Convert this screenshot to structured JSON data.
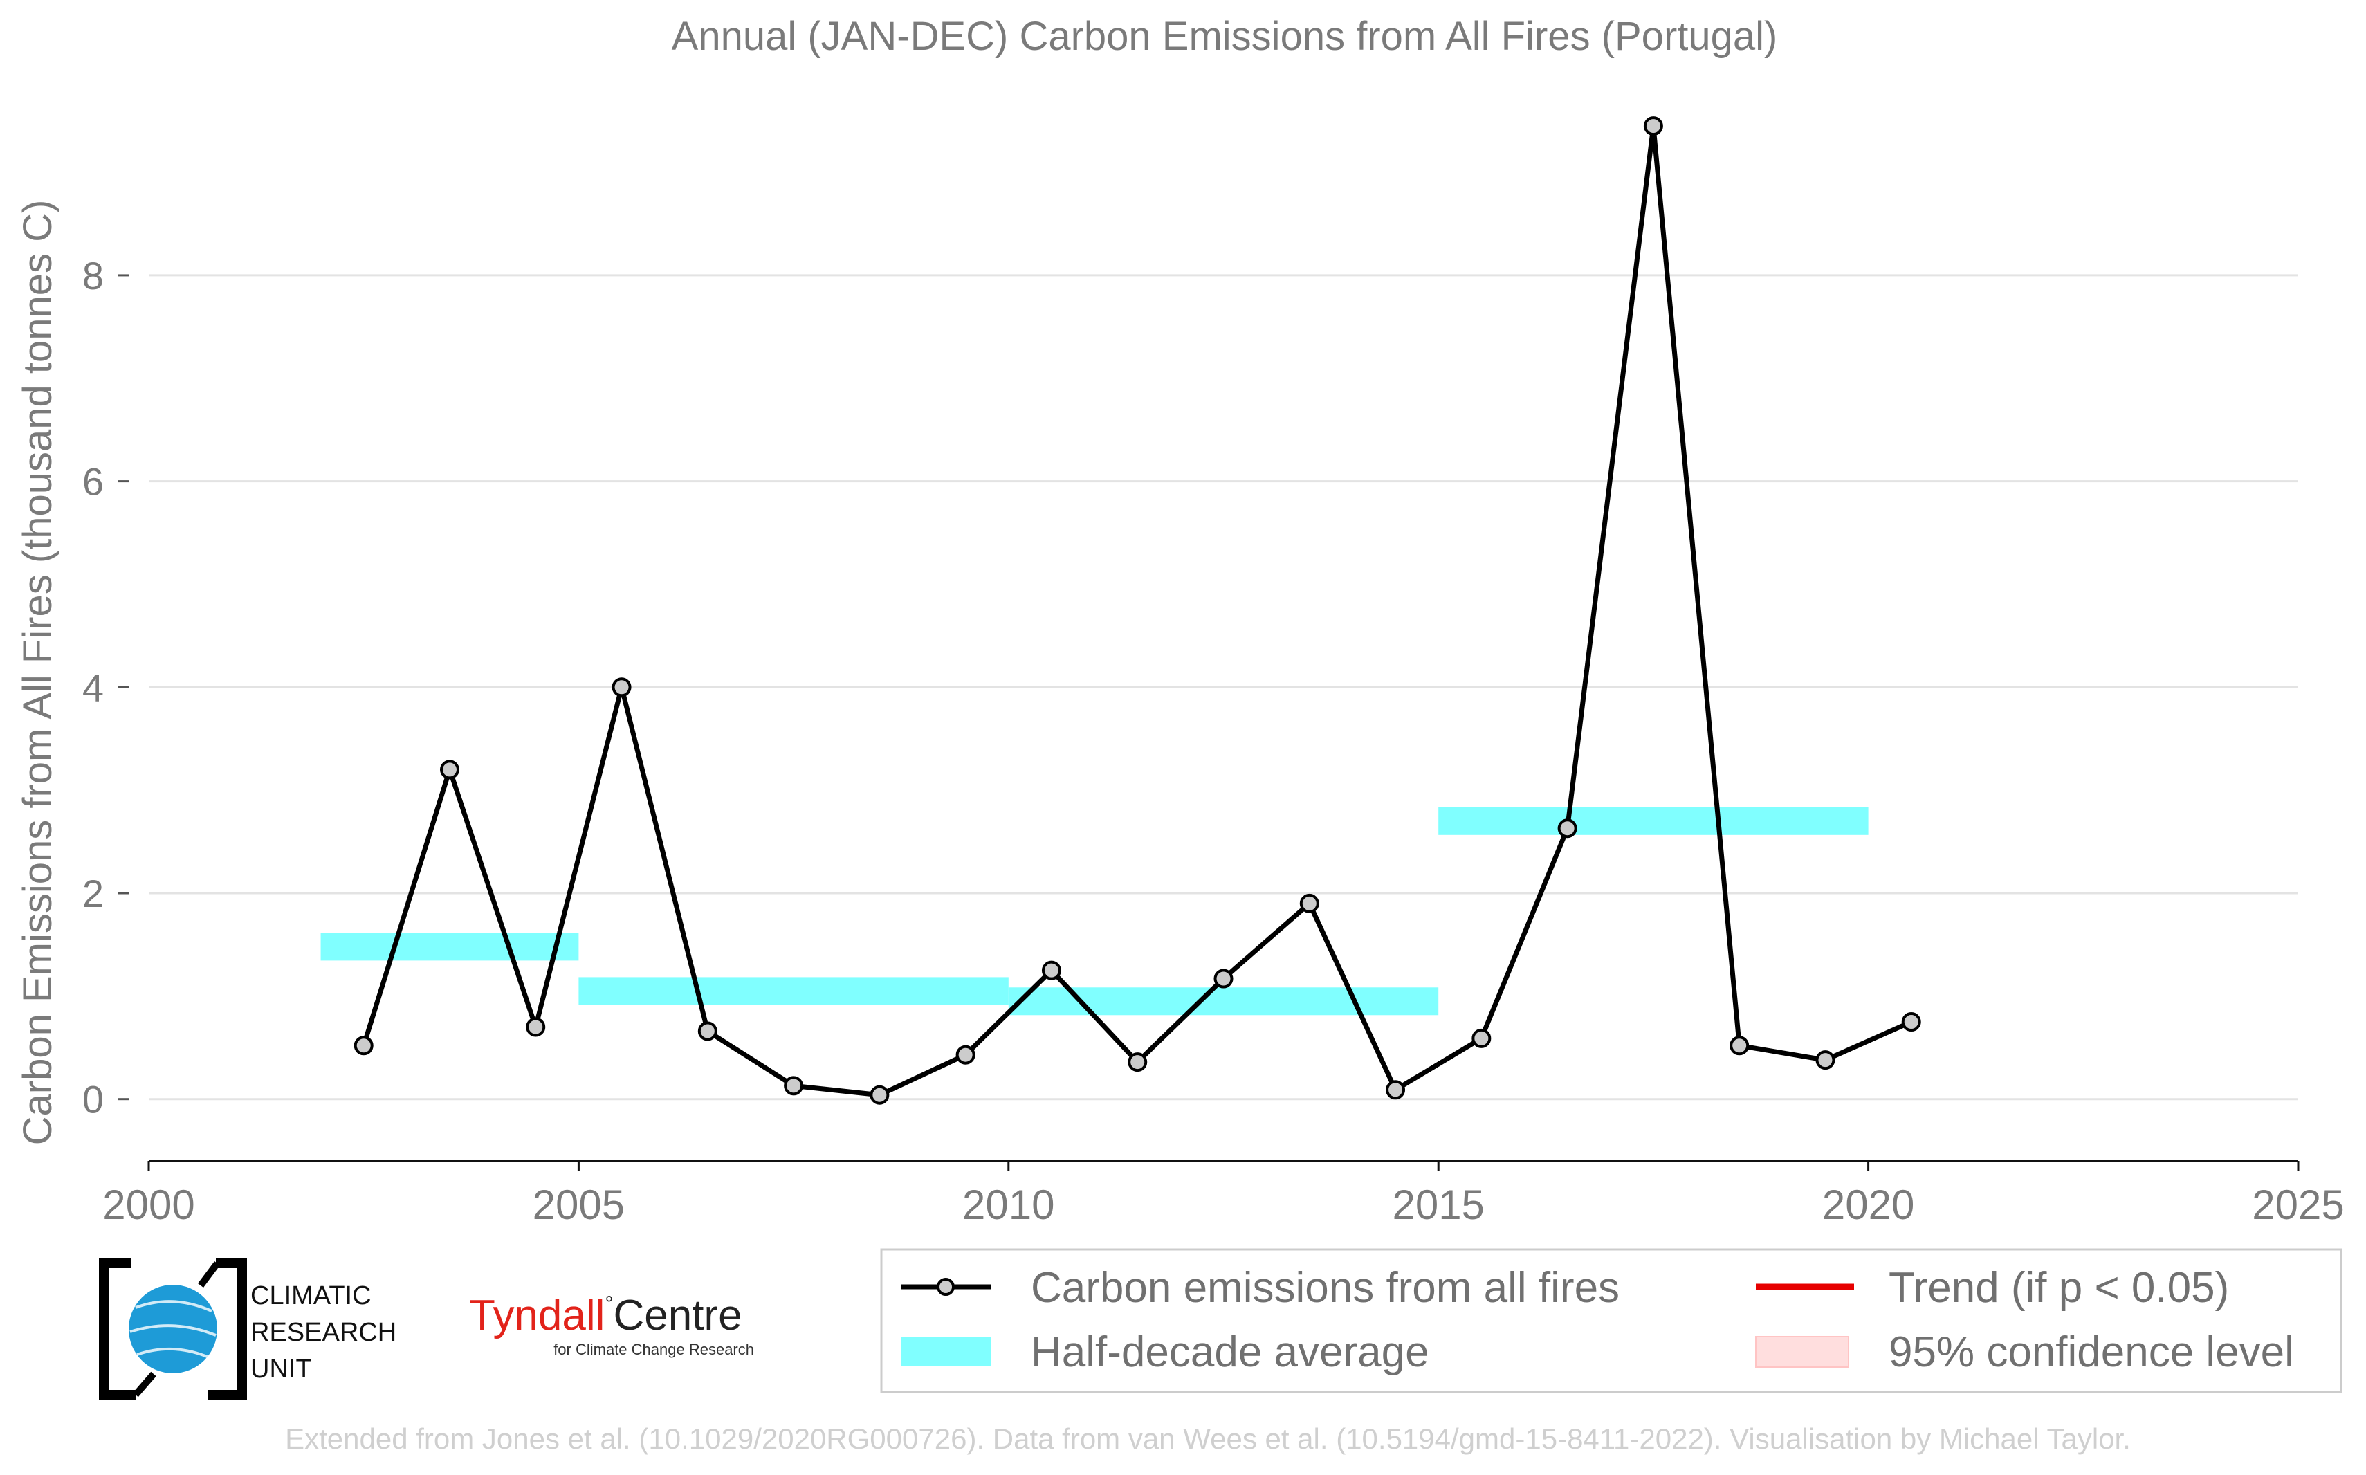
{
  "chart_data": {
    "type": "line",
    "title": "Annual (JAN-DEC) Carbon Emissions from All Fires (Portugal)",
    "xlabel": "",
    "ylabel": "Carbon Emissions from All Fires (thousand tonnes C)",
    "xlim": [
      2000,
      2025
    ],
    "ylim": [
      -0.6,
      9.8
    ],
    "xticks": [
      "2000",
      "2005",
      "2010",
      "2015",
      "2020",
      "2025"
    ],
    "yticks": [
      "0",
      "2",
      "4",
      "6",
      "8"
    ],
    "grid": "horizontal",
    "series": [
      {
        "name": "Carbon emissions from all fires",
        "color": "#000000",
        "marker_fill": "#cccccc",
        "x": [
          2002.5,
          2003.5,
          2004.5,
          2005.5,
          2006.5,
          2007.5,
          2008.5,
          2009.5,
          2010.5,
          2011.5,
          2012.5,
          2013.5,
          2014.5,
          2015.5,
          2016.5,
          2017.5,
          2018.5,
          2019.5,
          2020.5
        ],
        "values": [
          0.52,
          3.2,
          0.7,
          4.0,
          0.66,
          0.13,
          0.04,
          0.43,
          1.25,
          0.36,
          1.17,
          1.9,
          0.09,
          0.59,
          2.63,
          9.45,
          0.52,
          0.38,
          0.75
        ]
      }
    ],
    "half_decade_average": {
      "name": "Half-decade average",
      "color": "#80ffff",
      "segments": [
        {
          "x0": 2002,
          "x1": 2005,
          "value": 1.48
        },
        {
          "x0": 2005,
          "x1": 2010,
          "value": 1.05
        },
        {
          "x0": 2010,
          "x1": 2015,
          "value": 0.95
        },
        {
          "x0": 2015,
          "x1": 2020,
          "value": 2.7
        }
      ]
    },
    "legend": {
      "position": "bottom",
      "entries": [
        {
          "label": "Carbon emissions from all fires",
          "kind": "line-marker",
          "color": "#000000"
        },
        {
          "label": "Trend (if p < 0.05)",
          "kind": "line",
          "color": "#e60000"
        },
        {
          "label": "Half-decade average",
          "kind": "patch",
          "color": "#80ffff"
        },
        {
          "label": "95% confidence level",
          "kind": "patch",
          "color": "#ffdede"
        }
      ]
    }
  },
  "logos": {
    "cru": [
      "CLIMATIC",
      "RESEARCH",
      "UNIT"
    ],
    "tyndall_main": "Tyndall",
    "tyndall_degree": "°",
    "tyndall_centre": "Centre",
    "tyndall_sub": "for Climate Change Research"
  },
  "credit": "Extended from Jones et al. (10.1029/2020RG000726). Data from van Wees et al. (10.5194/gmd-15-8411-2022). Visualisation by Michael Taylor."
}
